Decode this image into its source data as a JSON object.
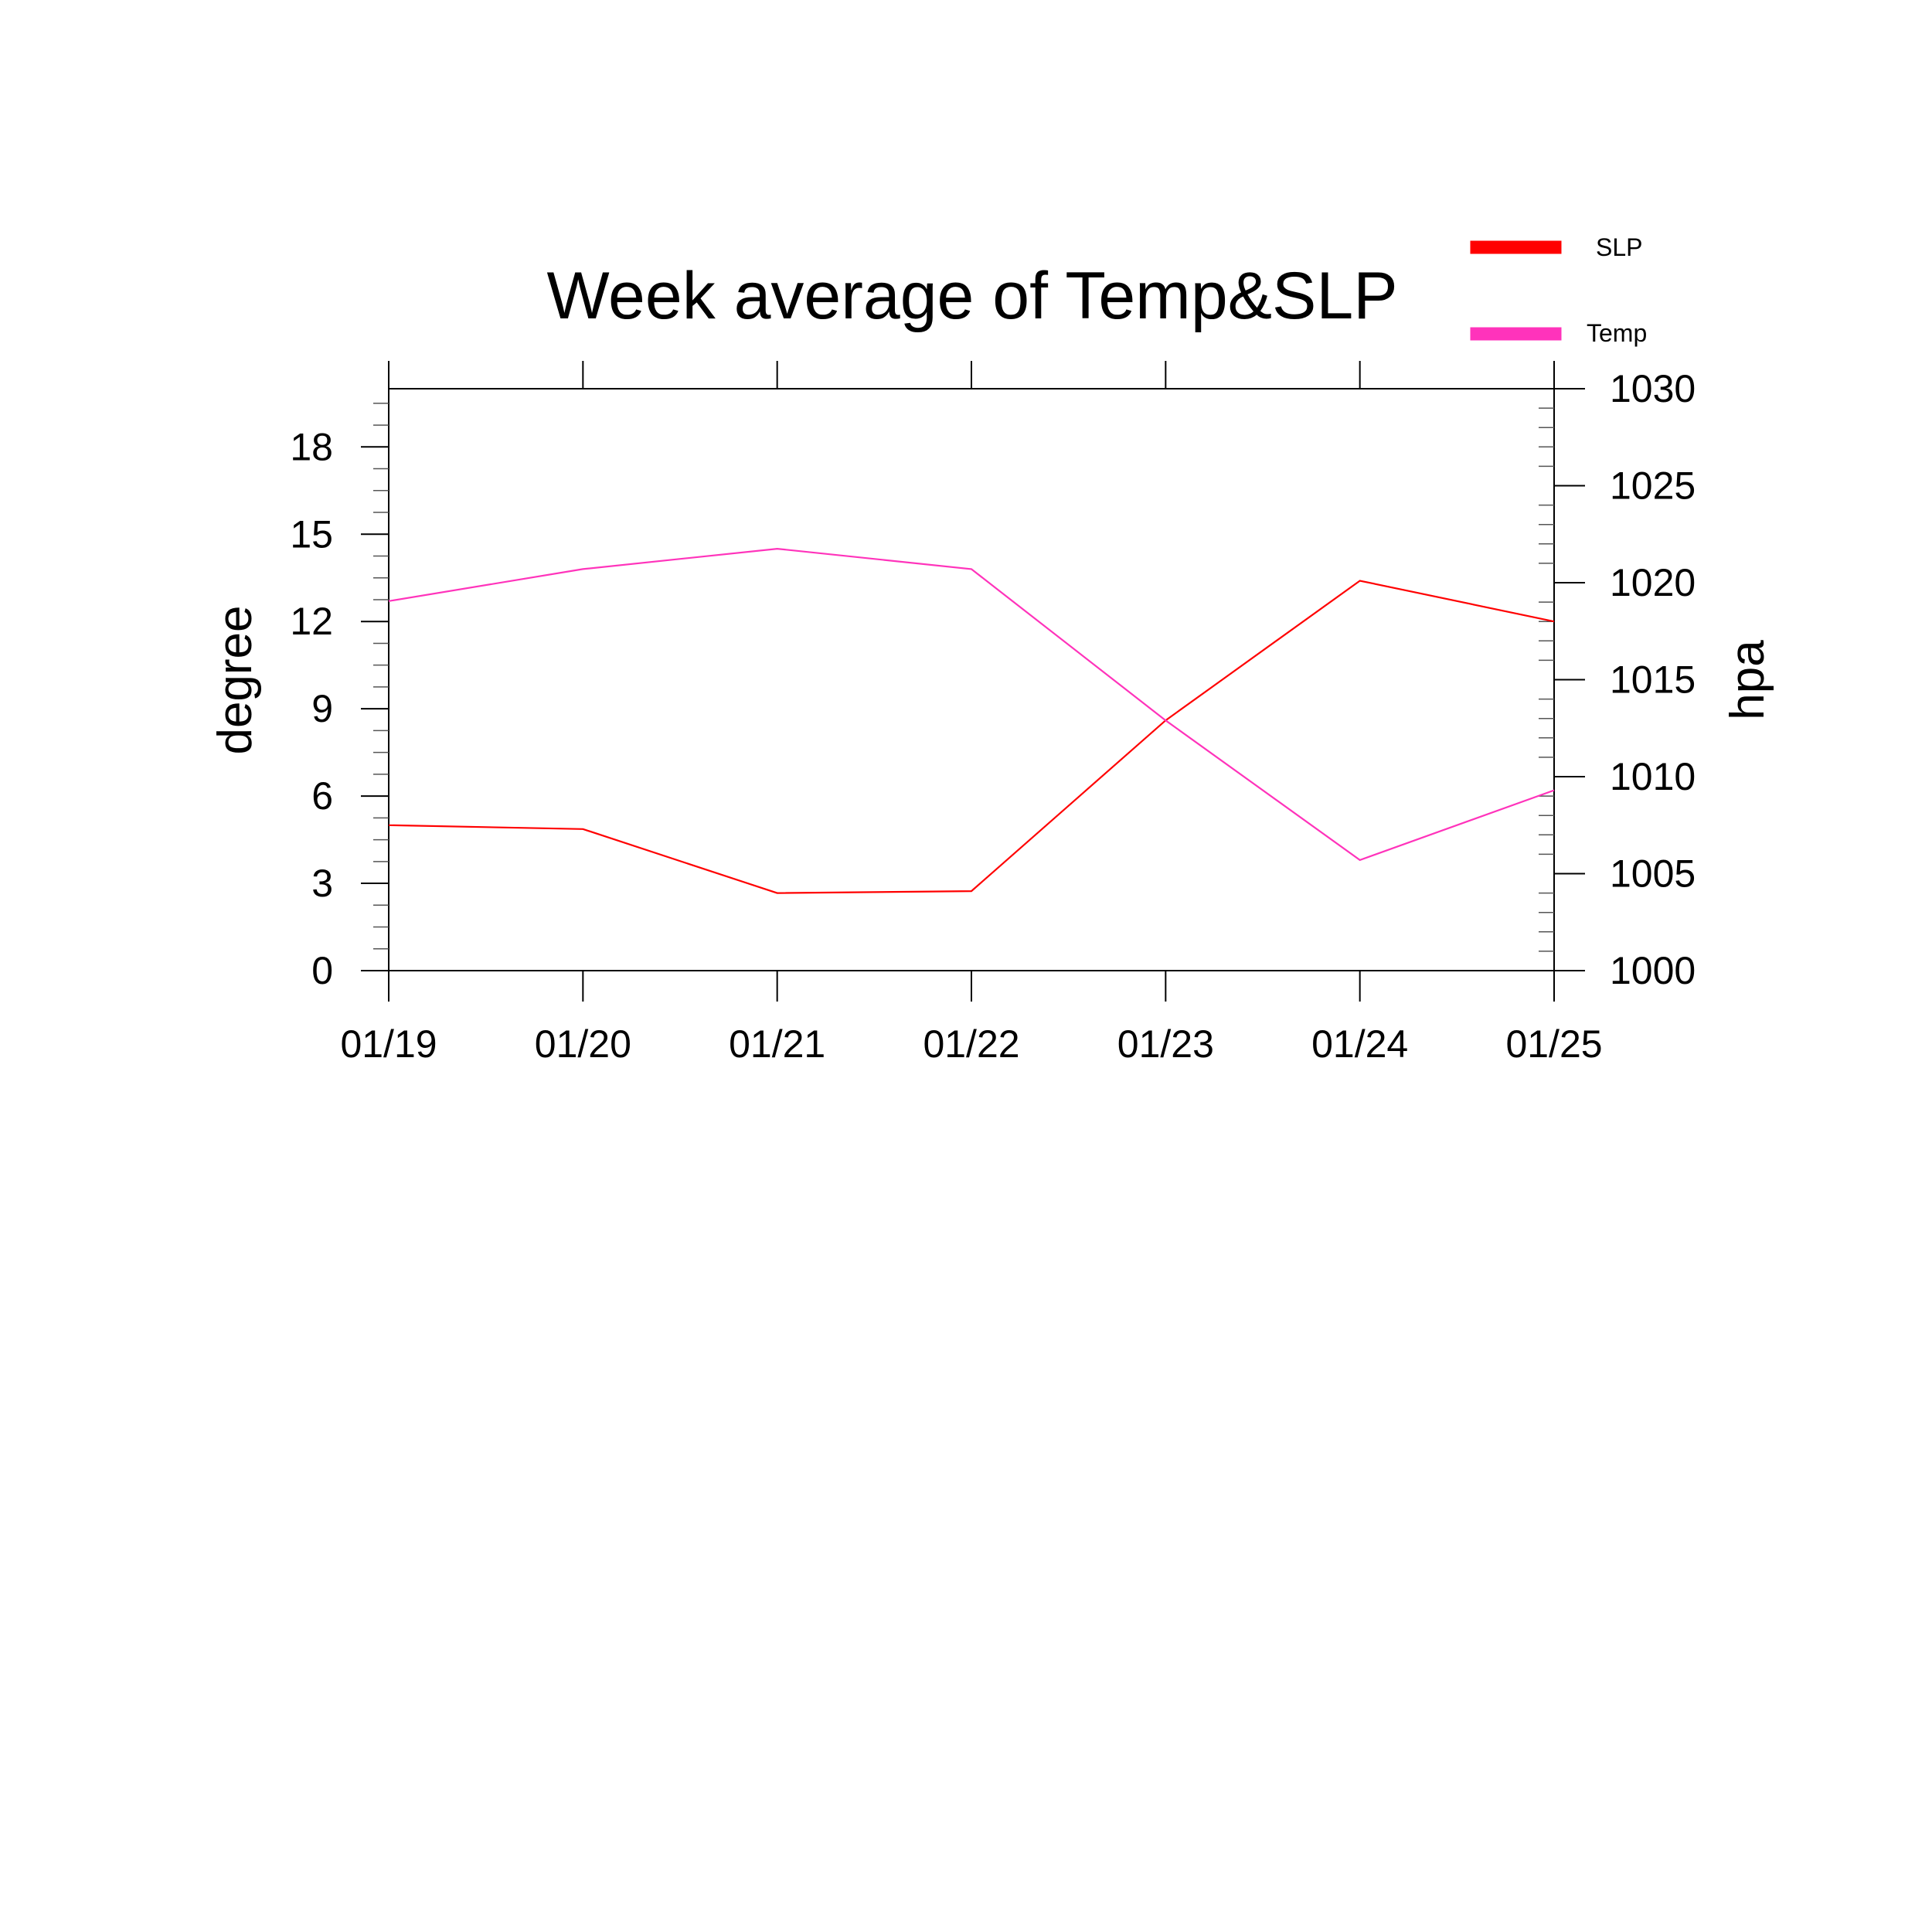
{
  "chart_data": {
    "type": "line",
    "title": "Week average of Temp&SLP",
    "x": [
      "01/19",
      "01/20",
      "01/21",
      "01/22",
      "01/23",
      "01/24",
      "01/25"
    ],
    "y_left": {
      "label": "degree",
      "range": [
        0,
        20
      ],
      "ticks": [
        "0",
        "3",
        "6",
        "9",
        "12",
        "15",
        "18"
      ],
      "tick_values": [
        0,
        3,
        6,
        9,
        12,
        15,
        18
      ]
    },
    "y_right": {
      "label": "hpa",
      "range": [
        1000,
        1030
      ],
      "ticks": [
        "1000",
        "1005",
        "1010",
        "1015",
        "1020",
        "1025",
        "1030"
      ],
      "tick_values": [
        1000,
        1005,
        1010,
        1015,
        1020,
        1025,
        1030
      ]
    },
    "series": [
      {
        "name": "SLP",
        "axis": "right",
        "color": "#ff0000",
        "values": [
          1007.5,
          1007.3,
          1004.0,
          1004.1,
          1012.9,
          1020.1,
          1018.0
        ]
      },
      {
        "name": "Temp",
        "axis": "left",
        "color": "#ff33bb",
        "values": [
          12.7,
          13.8,
          14.5,
          13.8,
          8.6,
          3.8,
          6.2
        ]
      }
    ],
    "grid": false,
    "legend_position": "top-right"
  }
}
